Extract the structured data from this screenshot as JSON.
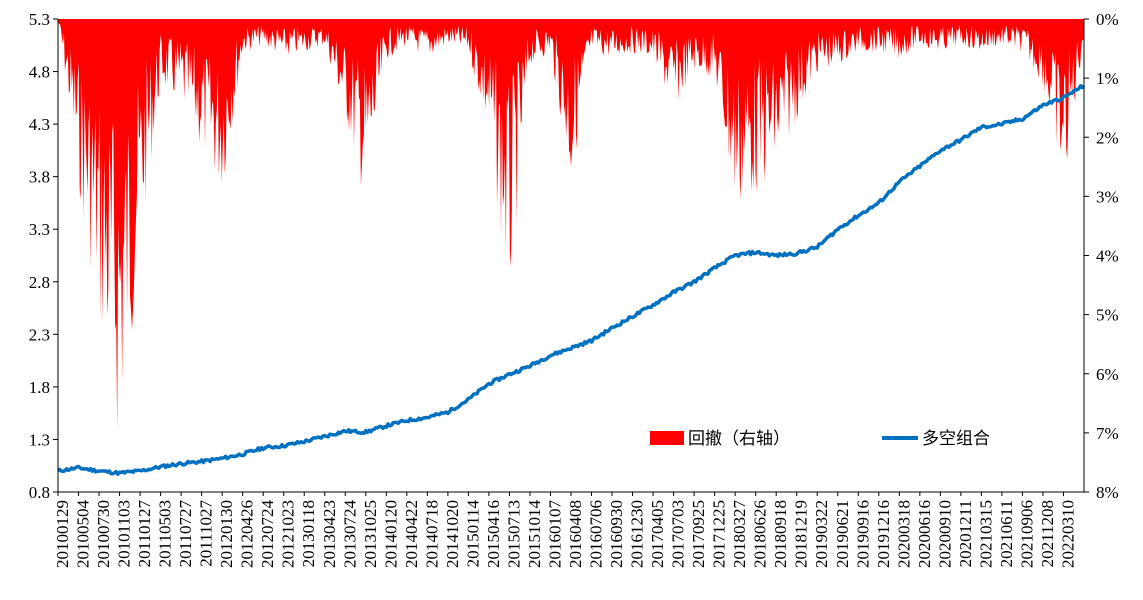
{
  "chart_data": {
    "type": "area+line",
    "title": "",
    "xlabel": "",
    "ylabel_left": "",
    "ylabel_right": "",
    "left_axis": {
      "min": 0.8,
      "max": 5.3,
      "ticks": [
        "0.8",
        "1.3",
        "1.8",
        "2.3",
        "2.8",
        "3.3",
        "3.8",
        "4.3",
        "4.8",
        "5.3"
      ]
    },
    "right_axis": {
      "min": 0,
      "max": 8,
      "inverted": true,
      "ticks": [
        "0%",
        "1%",
        "2%",
        "3%",
        "4%",
        "5%",
        "6%",
        "7%",
        "8%"
      ]
    },
    "x_tick_labels": [
      "20100129",
      "20100504",
      "20100730",
      "20101103",
      "20110127",
      "20110503",
      "20110727",
      "20111027",
      "20120130",
      "20120426",
      "20120724",
      "20121023",
      "20130118",
      "20130423",
      "20130724",
      "20131025",
      "20140120",
      "20140422",
      "20140718",
      "20141020",
      "20150114",
      "20150416",
      "20150713",
      "20151014",
      "20160107",
      "20160408",
      "20160706",
      "20160930",
      "20161230",
      "20170405",
      "20170703",
      "20170925",
      "20171225",
      "20180327",
      "20180626",
      "20180918",
      "20181219",
      "20190322",
      "20190621",
      "20190916",
      "20191216",
      "20200318",
      "20200616",
      "20200910",
      "20201211",
      "20210315",
      "20210611",
      "20210906",
      "20211208",
      "20220310"
    ],
    "legend": [
      {
        "name": "回撤（右轴）",
        "color": "#ff0000",
        "kind": "area"
      },
      {
        "name": "多空组合",
        "color": "#0070c0",
        "kind": "line"
      }
    ],
    "series_line": {
      "name": "多空组合",
      "axis": "left",
      "color": "#0070c0",
      "points": [
        {
          "x": "20100129",
          "y": 1.0
        },
        {
          "x": "20100504",
          "y": 1.03
        },
        {
          "x": "20100730",
          "y": 1.0
        },
        {
          "x": "20101103",
          "y": 0.98
        },
        {
          "x": "20110127",
          "y": 1.0
        },
        {
          "x": "20110503",
          "y": 1.04
        },
        {
          "x": "20110727",
          "y": 1.07
        },
        {
          "x": "20111027",
          "y": 1.09
        },
        {
          "x": "20120130",
          "y": 1.12
        },
        {
          "x": "20120426",
          "y": 1.16
        },
        {
          "x": "20120724",
          "y": 1.22
        },
        {
          "x": "20121023",
          "y": 1.24
        },
        {
          "x": "20130118",
          "y": 1.28
        },
        {
          "x": "20130423",
          "y": 1.33
        },
        {
          "x": "20130724",
          "y": 1.38
        },
        {
          "x": "20131025",
          "y": 1.37
        },
        {
          "x": "20140120",
          "y": 1.43
        },
        {
          "x": "20140422",
          "y": 1.48
        },
        {
          "x": "20140718",
          "y": 1.51
        },
        {
          "x": "20141020",
          "y": 1.56
        },
        {
          "x": "20150114",
          "y": 1.68
        },
        {
          "x": "20150416",
          "y": 1.83
        },
        {
          "x": "20150713",
          "y": 1.92
        },
        {
          "x": "20151014",
          "y": 2.0
        },
        {
          "x": "20160107",
          "y": 2.1
        },
        {
          "x": "20160408",
          "y": 2.17
        },
        {
          "x": "20160706",
          "y": 2.24
        },
        {
          "x": "20160930",
          "y": 2.36
        },
        {
          "x": "20161230",
          "y": 2.47
        },
        {
          "x": "20170405",
          "y": 2.58
        },
        {
          "x": "20170703",
          "y": 2.7
        },
        {
          "x": "20170925",
          "y": 2.8
        },
        {
          "x": "20171225",
          "y": 2.93
        },
        {
          "x": "20180327",
          "y": 3.05
        },
        {
          "x": "20180626",
          "y": 3.08
        },
        {
          "x": "20180918",
          "y": 3.05
        },
        {
          "x": "20181219",
          "y": 3.07
        },
        {
          "x": "20190322",
          "y": 3.13
        },
        {
          "x": "20190621",
          "y": 3.3
        },
        {
          "x": "20190916",
          "y": 3.43
        },
        {
          "x": "20191216",
          "y": 3.55
        },
        {
          "x": "20200318",
          "y": 3.75
        },
        {
          "x": "20200616",
          "y": 3.9
        },
        {
          "x": "20200910",
          "y": 4.05
        },
        {
          "x": "20201211",
          "y": 4.15
        },
        {
          "x": "20210315",
          "y": 4.27
        },
        {
          "x": "20210611",
          "y": 4.3
        },
        {
          "x": "20210906",
          "y": 4.35
        },
        {
          "x": "20211208",
          "y": 4.48
        },
        {
          "x": "20220310",
          "y": 4.55
        },
        {
          "x": "end",
          "y": 4.67
        }
      ]
    },
    "series_drawdown": {
      "name": "回撤（右轴）",
      "axis": "right",
      "unit": "%",
      "color": "#ff0000",
      "points": [
        {
          "x": "20100129",
          "y": 0.0
        },
        {
          "x": "20100504",
          "y": 2.5
        },
        {
          "x": "20100730",
          "y": 4.6
        },
        {
          "x": "20101103",
          "y": 6.5
        },
        {
          "x": "20110127",
          "y": 3.5
        },
        {
          "x": "20110503",
          "y": 1.0
        },
        {
          "x": "20110727",
          "y": 1.3
        },
        {
          "x": "20111027",
          "y": 2.0
        },
        {
          "x": "20120130",
          "y": 2.6
        },
        {
          "x": "20120426",
          "y": 0.5
        },
        {
          "x": "20120724",
          "y": 0.4
        },
        {
          "x": "20121023",
          "y": 0.6
        },
        {
          "x": "20130118",
          "y": 0.5
        },
        {
          "x": "20130423",
          "y": 0.4
        },
        {
          "x": "20130724",
          "y": 1.5
        },
        {
          "x": "20131025",
          "y": 2.8
        },
        {
          "x": "20140120",
          "y": 0.6
        },
        {
          "x": "20140422",
          "y": 0.4
        },
        {
          "x": "20140718",
          "y": 0.6
        },
        {
          "x": "20141020",
          "y": 0.4
        },
        {
          "x": "20150114",
          "y": 0.5
        },
        {
          "x": "20150416",
          "y": 1.8
        },
        {
          "x": "20150713",
          "y": 4.3
        },
        {
          "x": "20151014",
          "y": 0.7
        },
        {
          "x": "20160107",
          "y": 0.5
        },
        {
          "x": "20160408",
          "y": 2.5
        },
        {
          "x": "20160706",
          "y": 0.5
        },
        {
          "x": "20160930",
          "y": 0.6
        },
        {
          "x": "20161230",
          "y": 0.5
        },
        {
          "x": "20170405",
          "y": 0.6
        },
        {
          "x": "20170703",
          "y": 1.4
        },
        {
          "x": "20170925",
          "y": 0.8
        },
        {
          "x": "20171225",
          "y": 0.9
        },
        {
          "x": "20180327",
          "y": 2.9
        },
        {
          "x": "20180626",
          "y": 2.6
        },
        {
          "x": "20180918",
          "y": 2.3
        },
        {
          "x": "20181219",
          "y": 1.5
        },
        {
          "x": "20190322",
          "y": 0.8
        },
        {
          "x": "20190621",
          "y": 0.7
        },
        {
          "x": "20190916",
          "y": 0.5
        },
        {
          "x": "20191216",
          "y": 0.5
        },
        {
          "x": "20200318",
          "y": 0.6
        },
        {
          "x": "20200616",
          "y": 0.4
        },
        {
          "x": "20200910",
          "y": 0.5
        },
        {
          "x": "20201211",
          "y": 0.4
        },
        {
          "x": "20210315",
          "y": 0.5
        },
        {
          "x": "20210611",
          "y": 0.4
        },
        {
          "x": "20210906",
          "y": 0.5
        },
        {
          "x": "20211208",
          "y": 1.0
        },
        {
          "x": "20220310",
          "y": 2.6
        },
        {
          "x": "end",
          "y": 0.3
        }
      ]
    },
    "grid": false,
    "legend_position": "bottom-right inside plot"
  }
}
